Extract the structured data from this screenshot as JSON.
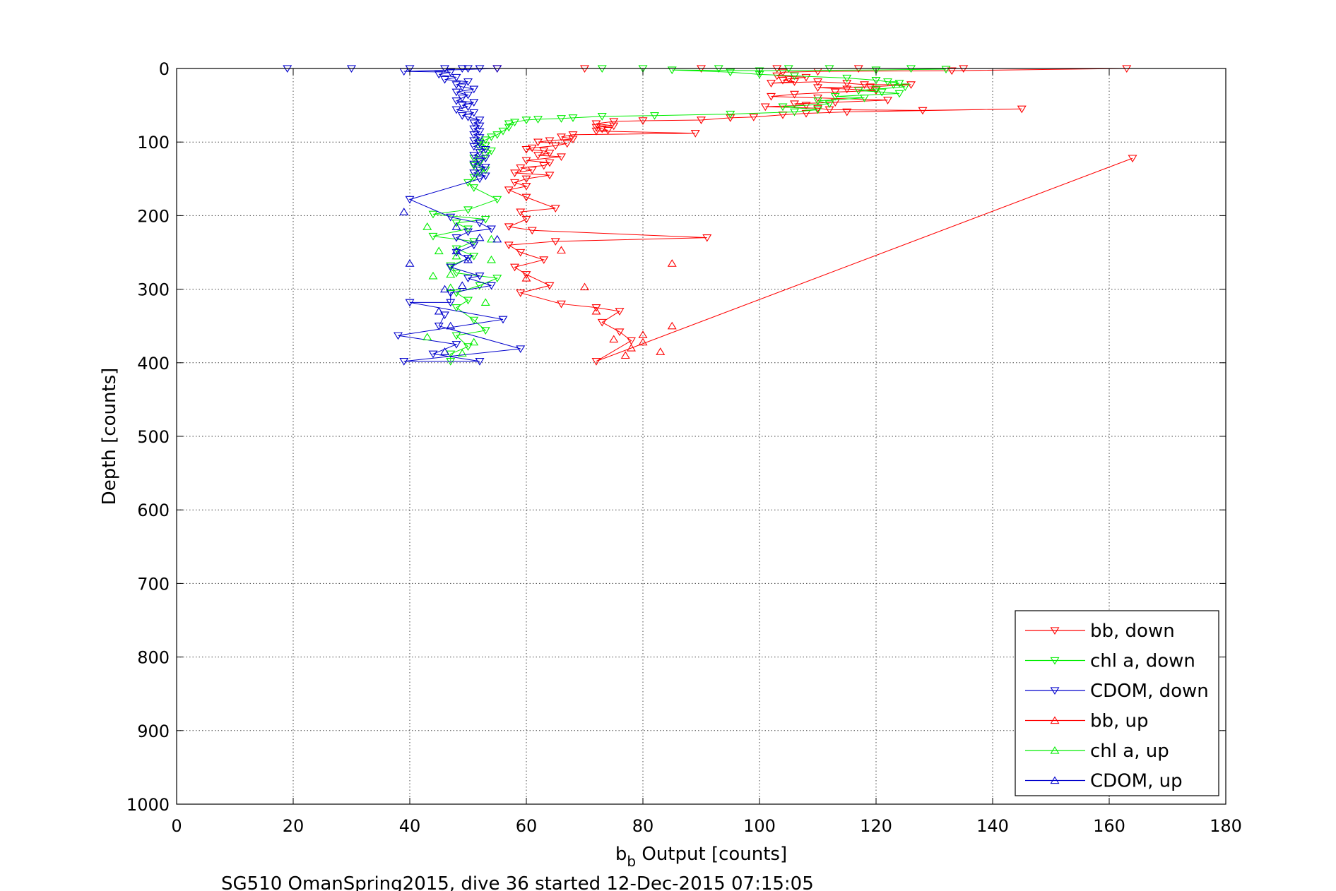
{
  "chart_data": {
    "type": "scatter",
    "title": "",
    "xlabel_main": "b",
    "xlabel_sub": "b",
    "xlabel_rest": " Output [counts]",
    "ylabel": "Depth [counts]",
    "caption": "SG510 OmanSpring2015, dive 36 started 12-Dec-2015 07:15:05",
    "xlim": [
      0,
      180
    ],
    "ylim": [
      0,
      1000
    ],
    "y_reversed": true,
    "grid": true,
    "legend_position": "bottom-right",
    "xticks": [
      "0",
      "20",
      "40",
      "60",
      "80",
      "100",
      "120",
      "140",
      "160",
      "180"
    ],
    "yticks": [
      "0",
      "100",
      "200",
      "300",
      "400",
      "500",
      "600",
      "700",
      "800",
      "900",
      "1000"
    ],
    "series": [
      {
        "name": "bb, down",
        "color": "#ff0000",
        "marker": "triangle-down",
        "connected": true,
        "points": [
          [
            55,
            0
          ],
          [
            70,
            0
          ],
          [
            90,
            0
          ],
          [
            103,
            0
          ],
          [
            117,
            0
          ],
          [
            135,
            0
          ],
          [
            163,
            0
          ],
          [
            133,
            3
          ],
          [
            110,
            4
          ],
          [
            104,
            5
          ],
          [
            103,
            10
          ],
          [
            108,
            12
          ],
          [
            105,
            14
          ],
          [
            104,
            16
          ],
          [
            106,
            18
          ],
          [
            102,
            20
          ],
          [
            110,
            18
          ],
          [
            115,
            20
          ],
          [
            118,
            22
          ],
          [
            126,
            22
          ],
          [
            119,
            25
          ],
          [
            110,
            26
          ],
          [
            115,
            28
          ],
          [
            120,
            30
          ],
          [
            113,
            32
          ],
          [
            106,
            35
          ],
          [
            102,
            38
          ],
          [
            110,
            40
          ],
          [
            122,
            43
          ],
          [
            113,
            46
          ],
          [
            106,
            48
          ],
          [
            108,
            50
          ],
          [
            101,
            52
          ],
          [
            110,
            54
          ],
          [
            112,
            56
          ],
          [
            128,
            57
          ],
          [
            145,
            55
          ],
          [
            115,
            59
          ],
          [
            108,
            61
          ],
          [
            104,
            63
          ],
          [
            99,
            66
          ],
          [
            95,
            67
          ],
          [
            90,
            70
          ],
          [
            80,
            71
          ],
          [
            75,
            72
          ],
          [
            72,
            75
          ],
          [
            75,
            78
          ],
          [
            72,
            80
          ],
          [
            73,
            82
          ],
          [
            74,
            84
          ],
          [
            72,
            85
          ],
          [
            89,
            88
          ],
          [
            68,
            90
          ],
          [
            66,
            93
          ],
          [
            68,
            96
          ],
          [
            64,
            98
          ],
          [
            62,
            100
          ],
          [
            67,
            102
          ],
          [
            65,
            105
          ],
          [
            61,
            108
          ],
          [
            60,
            110
          ],
          [
            63,
            112
          ],
          [
            64,
            115
          ],
          [
            62,
            118
          ],
          [
            66,
            120
          ],
          [
            60,
            125
          ],
          [
            64,
            128
          ],
          [
            63,
            132
          ],
          [
            59,
            135
          ],
          [
            61,
            138
          ],
          [
            58,
            142
          ],
          [
            64,
            145
          ],
          [
            60,
            150
          ],
          [
            58,
            155
          ],
          [
            60,
            160
          ],
          [
            57,
            165
          ],
          [
            60,
            175
          ],
          [
            65,
            190
          ],
          [
            59,
            195
          ],
          [
            60,
            205
          ],
          [
            57,
            215
          ],
          [
            61,
            220
          ],
          [
            91,
            230
          ],
          [
            65,
            235
          ],
          [
            57,
            240
          ],
          [
            59,
            250
          ],
          [
            63,
            260
          ],
          [
            58,
            270
          ],
          [
            60,
            280
          ],
          [
            64,
            295
          ],
          [
            59,
            305
          ],
          [
            66,
            320
          ],
          [
            72,
            325
          ],
          [
            76,
            330
          ],
          [
            73,
            345
          ],
          [
            76,
            358
          ],
          [
            78,
            370
          ],
          [
            72,
            398
          ],
          [
            164,
            122
          ]
        ]
      },
      {
        "name": "chl a, down",
        "color": "#00ee00",
        "marker": "triangle-down",
        "connected": true,
        "points": [
          [
            73,
            0
          ],
          [
            80,
            0
          ],
          [
            93,
            0
          ],
          [
            105,
            0
          ],
          [
            112,
            0
          ],
          [
            126,
            0
          ],
          [
            132,
            1
          ],
          [
            120,
            2
          ],
          [
            100,
            3
          ],
          [
            85,
            2
          ],
          [
            95,
            5
          ],
          [
            100,
            8
          ],
          [
            106,
            10
          ],
          [
            115,
            13
          ],
          [
            120,
            16
          ],
          [
            122,
            18
          ],
          [
            124,
            20
          ],
          [
            123,
            22
          ],
          [
            125,
            25
          ],
          [
            120,
            28
          ],
          [
            117,
            30
          ],
          [
            121,
            32
          ],
          [
            124,
            34
          ],
          [
            113,
            38
          ],
          [
            118,
            40
          ],
          [
            110,
            44
          ],
          [
            112,
            48
          ],
          [
            104,
            52
          ],
          [
            110,
            56
          ],
          [
            106,
            59
          ],
          [
            95,
            62
          ],
          [
            82,
            64
          ],
          [
            73,
            65
          ],
          [
            68,
            67
          ],
          [
            66,
            68
          ],
          [
            62,
            69
          ],
          [
            60,
            70
          ],
          [
            58,
            73
          ],
          [
            57,
            75
          ],
          [
            57,
            80
          ],
          [
            56,
            85
          ],
          [
            55,
            90
          ],
          [
            54,
            93
          ],
          [
            53,
            97
          ],
          [
            52,
            100
          ],
          [
            53,
            105
          ],
          [
            52,
            108
          ],
          [
            54,
            112
          ],
          [
            53,
            118
          ],
          [
            51,
            122
          ],
          [
            52,
            128
          ],
          [
            51,
            132
          ],
          [
            53,
            138
          ],
          [
            52,
            142
          ],
          [
            51,
            148
          ],
          [
            50,
            155
          ],
          [
            51,
            162
          ],
          [
            55,
            178
          ],
          [
            50,
            192
          ],
          [
            44,
            198
          ],
          [
            53,
            205
          ],
          [
            48,
            210
          ],
          [
            50,
            218
          ],
          [
            44,
            228
          ],
          [
            51,
            235
          ],
          [
            48,
            245
          ],
          [
            51,
            255
          ],
          [
            47,
            268
          ],
          [
            48,
            278
          ],
          [
            55,
            285
          ],
          [
            52,
            295
          ],
          [
            48,
            305
          ],
          [
            50,
            315
          ],
          [
            48,
            325
          ],
          [
            51,
            342
          ],
          [
            53,
            356
          ],
          [
            48,
            363
          ],
          [
            50,
            378
          ],
          [
            47,
            388
          ],
          [
            47,
            398
          ]
        ]
      },
      {
        "name": "CDOM, down",
        "color": "#0000cc",
        "marker": "triangle-down",
        "connected": true,
        "points": [
          [
            19,
            0
          ],
          [
            30,
            0
          ],
          [
            40,
            0
          ],
          [
            46,
            0
          ],
          [
            49,
            0
          ],
          [
            50,
            0
          ],
          [
            52,
            0
          ],
          [
            55,
            0
          ],
          [
            39,
            4
          ],
          [
            47,
            5
          ],
          [
            45,
            8
          ],
          [
            48,
            12
          ],
          [
            46,
            15
          ],
          [
            50,
            18
          ],
          [
            48,
            22
          ],
          [
            49,
            25
          ],
          [
            51,
            28
          ],
          [
            48,
            32
          ],
          [
            50,
            36
          ],
          [
            49,
            40
          ],
          [
            48,
            44
          ],
          [
            51,
            46
          ],
          [
            49,
            50
          ],
          [
            50,
            52
          ],
          [
            48,
            56
          ],
          [
            51,
            60
          ],
          [
            49,
            64
          ],
          [
            50,
            66
          ],
          [
            52,
            70
          ],
          [
            51,
            74
          ],
          [
            52,
            78
          ],
          [
            51,
            82
          ],
          [
            52,
            86
          ],
          [
            51,
            90
          ],
          [
            52,
            94
          ],
          [
            51,
            98
          ],
          [
            52,
            102
          ],
          [
            51,
            106
          ],
          [
            53,
            110
          ],
          [
            52,
            114
          ],
          [
            51,
            118
          ],
          [
            53,
            122
          ],
          [
            52,
            126
          ],
          [
            51,
            130
          ],
          [
            53,
            134
          ],
          [
            52,
            138
          ],
          [
            51,
            142
          ],
          [
            53,
            146
          ],
          [
            52,
            150
          ],
          [
            40,
            178
          ],
          [
            47,
            202
          ],
          [
            52,
            210
          ],
          [
            54,
            218
          ],
          [
            50,
            222
          ],
          [
            48,
            230
          ],
          [
            51,
            240
          ],
          [
            48,
            250
          ],
          [
            50,
            258
          ],
          [
            47,
            270
          ],
          [
            52,
            282
          ],
          [
            50,
            285
          ],
          [
            54,
            295
          ],
          [
            47,
            305
          ],
          [
            47,
            318
          ],
          [
            40,
            318
          ],
          [
            56,
            341
          ],
          [
            38,
            363
          ],
          [
            48,
            375
          ],
          [
            44,
            388
          ],
          [
            52,
            398
          ],
          [
            39,
            398
          ],
          [
            59,
            381
          ],
          [
            45,
            350
          ],
          [
            46,
            335
          ]
        ]
      },
      {
        "name": "bb, up",
        "color": "#ff0000",
        "marker": "triangle-up",
        "connected": false,
        "points": [
          [
            85,
            265
          ],
          [
            66,
            247
          ],
          [
            70,
            297
          ],
          [
            72,
            330
          ],
          [
            75,
            368
          ],
          [
            80,
            362
          ],
          [
            85,
            350
          ],
          [
            78,
            380
          ],
          [
            77,
            390
          ],
          [
            83,
            385
          ],
          [
            80,
            372
          ],
          [
            60,
            285
          ]
        ]
      },
      {
        "name": "chl a, up",
        "color": "#00ee00",
        "marker": "triangle-up",
        "connected": false,
        "points": [
          [
            43,
            215
          ],
          [
            44,
            282
          ],
          [
            43,
            365
          ],
          [
            47,
            298
          ],
          [
            45,
            248
          ],
          [
            53,
            318
          ],
          [
            49,
            387
          ],
          [
            51,
            372
          ],
          [
            54,
            260
          ],
          [
            54,
            232
          ],
          [
            48,
            255
          ],
          [
            47,
            280
          ]
        ]
      },
      {
        "name": "CDOM, up",
        "color": "#0000cc",
        "marker": "triangle-up",
        "connected": false,
        "points": [
          [
            39,
            195
          ],
          [
            40,
            265
          ],
          [
            45,
            330
          ],
          [
            47,
            350
          ],
          [
            46,
            385
          ],
          [
            48,
            248
          ],
          [
            52,
            230
          ],
          [
            55,
            232
          ],
          [
            48,
            215
          ],
          [
            50,
            260
          ],
          [
            49,
            295
          ],
          [
            46,
            300
          ]
        ]
      }
    ]
  }
}
